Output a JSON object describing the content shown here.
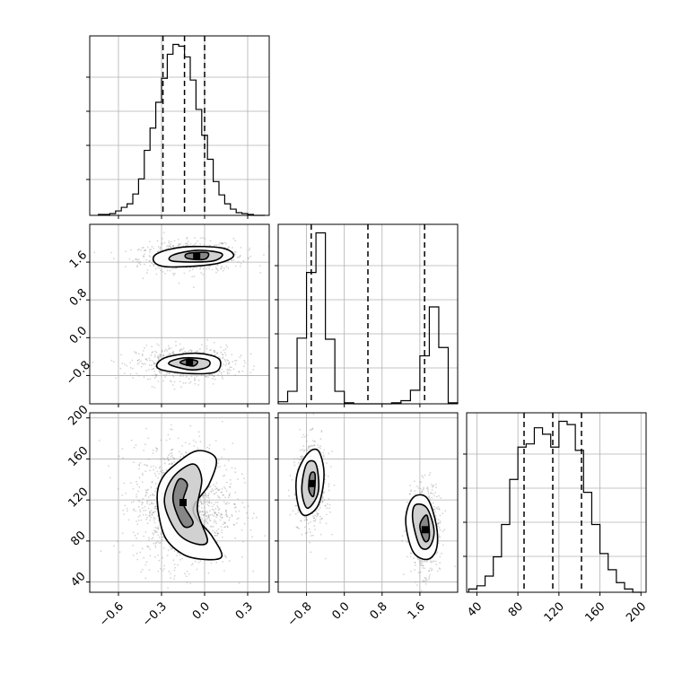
{
  "chart_data": {
    "type": "corner",
    "grid": true,
    "title": "",
    "parameters": [
      {
        "range": [
          -0.8,
          0.45
        ],
        "ticks": [
          "−0.6",
          "−0.3",
          "0.0",
          "0.3"
        ],
        "tick_values": [
          -0.6,
          -0.3,
          0.0,
          0.3
        ],
        "quantiles": [
          -0.29,
          -0.14,
          0.0
        ]
      },
      {
        "range": [
          -1.4,
          2.4
        ],
        "ticks": [
          "−0.8",
          "0.0",
          "0.8",
          "1.6"
        ],
        "tick_values": [
          -0.8,
          0.0,
          0.8,
          1.6
        ],
        "quantiles": [
          -0.7,
          0.5,
          1.7
        ]
      },
      {
        "range": [
          30,
          205
        ],
        "ticks": [
          "40",
          "80",
          "120",
          "160",
          "200"
        ],
        "tick_values": [
          40,
          80,
          120,
          160,
          200
        ],
        "quantiles": [
          86,
          114,
          142
        ]
      }
    ],
    "histograms": [
      {
        "param": 0,
        "bin_edges": [
          -0.74,
          -0.7,
          -0.66,
          -0.62,
          -0.58,
          -0.54,
          -0.5,
          -0.46,
          -0.42,
          -0.38,
          -0.34,
          -0.3,
          -0.26,
          -0.22,
          -0.18,
          -0.14,
          -0.1,
          -0.06,
          -0.02,
          0.02,
          0.06,
          0.1,
          0.14,
          0.18,
          0.22,
          0.26,
          0.3,
          0.34,
          0.38,
          0.42
        ],
        "counts": [
          1,
          1,
          2,
          5,
          9,
          13,
          24,
          41,
          73,
          98,
          127,
          154,
          181,
          192,
          190,
          178,
          152,
          119,
          90,
          63,
          38,
          23,
          13,
          7,
          3,
          2,
          1,
          0,
          0
        ]
      },
      {
        "param": 1,
        "bin_edges": [
          -1.4,
          -1.2,
          -1.0,
          -0.8,
          -0.6,
          -0.4,
          -0.2,
          0.0,
          0.2,
          0.4,
          0.6,
          0.8,
          1.0,
          1.2,
          1.4,
          1.6,
          1.8,
          2.0,
          2.2,
          2.4
        ],
        "counts": [
          2,
          12,
          63,
          126,
          164,
          62,
          12,
          1,
          0,
          0,
          0,
          0,
          1,
          3,
          13,
          46,
          93,
          54,
          1
        ]
      },
      {
        "param": 2,
        "bin_edges": [
          32,
          40,
          48,
          56,
          64,
          72,
          80,
          88,
          96,
          104,
          112,
          120,
          128,
          136,
          144,
          152,
          160,
          168,
          176,
          184,
          192,
          200
        ],
        "counts": [
          1,
          2,
          5,
          11,
          21,
          35,
          45,
          46,
          51,
          49,
          45,
          53,
          52,
          44,
          31,
          21,
          12,
          7,
          3,
          1,
          0
        ]
      }
    ],
    "scatter_2d": [
      {
        "x_param": 0,
        "y_param": 1,
        "clusters": [
          {
            "center": [
              -0.1,
              1.72
            ],
            "spread": [
              0.16,
              0.14
            ],
            "rotation_deg": 10,
            "n": 650
          },
          {
            "center": [
              -0.13,
              -0.55
            ],
            "spread": [
              0.15,
              0.15
            ],
            "rotation_deg": 0,
            "n": 650
          }
        ],
        "contours": [
          [
            [
              -0.35,
              1.6
            ],
            [
              -0.25,
              1.5
            ],
            [
              0.05,
              1.55
            ],
            [
              0.2,
              1.72
            ],
            [
              0.12,
              1.9
            ],
            [
              -0.15,
              1.92
            ],
            [
              -0.33,
              1.78
            ]
          ],
          [
            [
              -0.22,
              1.62
            ],
            [
              0.05,
              1.62
            ],
            [
              0.12,
              1.78
            ],
            [
              -0.05,
              1.85
            ],
            [
              -0.22,
              1.75
            ]
          ],
          [
            [
              -0.12,
              1.68
            ],
            [
              0.0,
              1.66
            ],
            [
              0.02,
              1.8
            ],
            [
              -0.12,
              1.78
            ]
          ],
          [
            [
              -0.33,
              -0.55
            ],
            [
              -0.3,
              -0.68
            ],
            [
              -0.1,
              -0.76
            ],
            [
              0.08,
              -0.72
            ],
            [
              0.1,
              -0.45
            ],
            [
              -0.05,
              -0.33
            ],
            [
              -0.25,
              -0.4
            ]
          ],
          [
            [
              -0.25,
              -0.55
            ],
            [
              -0.1,
              -0.68
            ],
            [
              0.02,
              -0.62
            ],
            [
              0.02,
              -0.47
            ],
            [
              -0.15,
              -0.43
            ]
          ],
          [
            [
              -0.17,
              -0.53
            ],
            [
              -0.08,
              -0.6
            ],
            [
              -0.05,
              -0.5
            ],
            [
              -0.12,
              -0.46
            ]
          ]
        ]
      },
      {
        "x_param": 0,
        "y_param": 2,
        "clusters": [
          {
            "center": [
              -0.15,
              115
            ],
            "spread": [
              0.15,
              26
            ],
            "rotation_deg": 0,
            "n": 1300
          }
        ],
        "contours": [
          [
            [
              -0.33,
              120
            ],
            [
              -0.28,
              85
            ],
            [
              -0.15,
              67
            ],
            [
              0.0,
              62
            ],
            [
              0.12,
              65
            ],
            [
              0.05,
              85
            ],
            [
              -0.08,
              110
            ],
            [
              0.03,
              135
            ],
            [
              0.08,
              160
            ],
            [
              -0.05,
              168
            ],
            [
              -0.2,
              155
            ],
            [
              -0.3,
              140
            ]
          ],
          [
            [
              -0.28,
              118
            ],
            [
              -0.2,
              90
            ],
            [
              -0.08,
              78
            ],
            [
              0.02,
              80
            ],
            [
              -0.05,
              110
            ],
            [
              -0.02,
              140
            ],
            [
              -0.08,
              155
            ],
            [
              -0.22,
              142
            ]
          ],
          [
            [
              -0.22,
              120
            ],
            [
              -0.15,
              95
            ],
            [
              -0.08,
              98
            ],
            [
              -0.15,
              117
            ],
            [
              -0.12,
              135
            ],
            [
              -0.18,
              140
            ]
          ]
        ]
      },
      {
        "x_param": 1,
        "y_param": 2,
        "clusters": [
          {
            "center": [
              -0.7,
              135
            ],
            "spread": [
              0.14,
              18
            ],
            "rotation_deg": -12,
            "n": 650
          },
          {
            "center": [
              1.7,
              92
            ],
            "spread": [
              0.14,
              18
            ],
            "rotation_deg": -12,
            "n": 650
          }
        ],
        "contours": [
          [
            [
              -1.0,
              120
            ],
            [
              -0.85,
              105
            ],
            [
              -0.55,
              115
            ],
            [
              -0.43,
              145
            ],
            [
              -0.55,
              168
            ],
            [
              -0.78,
              165
            ],
            [
              -1.0,
              145
            ]
          ],
          [
            [
              -0.9,
              130
            ],
            [
              -0.78,
              112
            ],
            [
              -0.55,
              128
            ],
            [
              -0.6,
              155
            ],
            [
              -0.8,
              155
            ]
          ],
          [
            [
              -0.75,
              130
            ],
            [
              -0.65,
              124
            ],
            [
              -0.62,
              145
            ],
            [
              -0.72,
              145
            ]
          ],
          [
            [
              1.3,
              100
            ],
            [
              1.45,
              70
            ],
            [
              1.75,
              62
            ],
            [
              1.95,
              72
            ],
            [
              1.95,
              95
            ],
            [
              1.75,
              122
            ],
            [
              1.45,
              122
            ]
          ],
          [
            [
              1.45,
              100
            ],
            [
              1.6,
              75
            ],
            [
              1.8,
              74
            ],
            [
              1.9,
              90
            ],
            [
              1.75,
              112
            ],
            [
              1.5,
              115
            ]
          ],
          [
            [
              1.6,
              95
            ],
            [
              1.7,
              80
            ],
            [
              1.8,
              84
            ],
            [
              1.75,
              105
            ]
          ]
        ]
      }
    ]
  }
}
